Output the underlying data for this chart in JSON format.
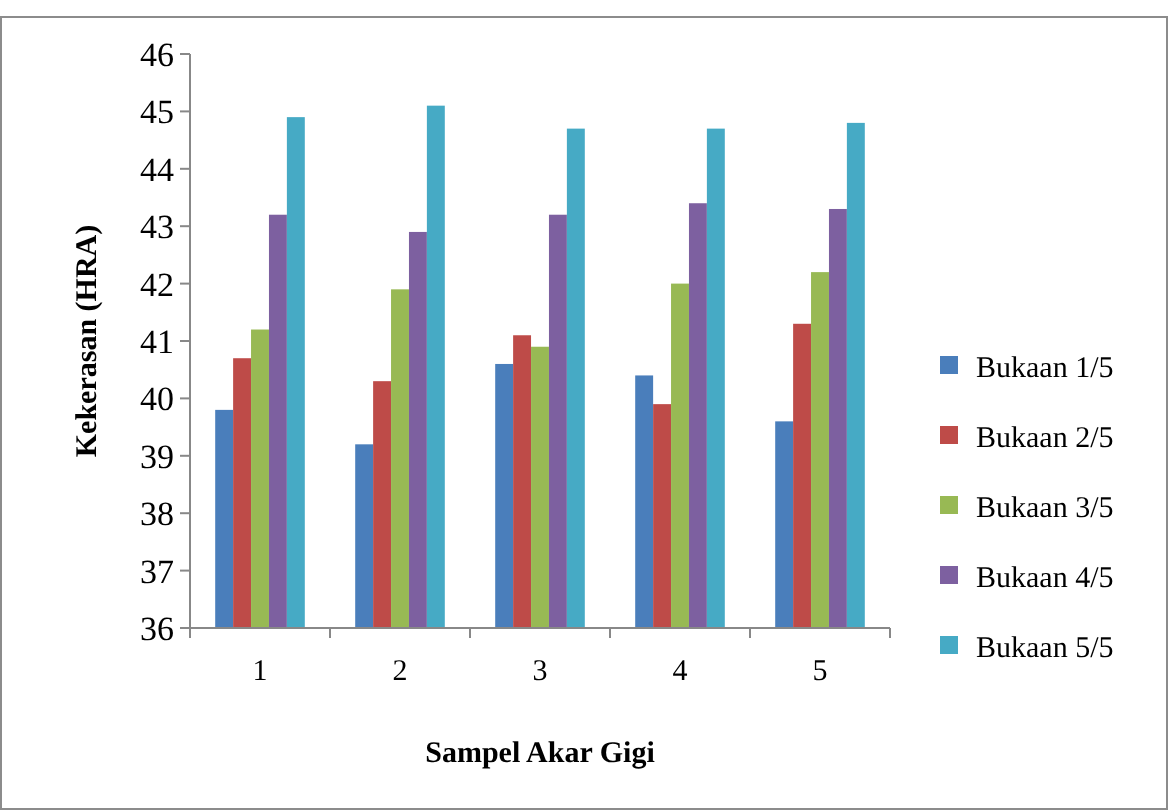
{
  "chart_data": {
    "type": "bar",
    "xlabel": "Sampel Akar Gigi",
    "ylabel": "Kekerasan (HRA)",
    "categories": [
      "1",
      "2",
      "3",
      "4",
      "5"
    ],
    "series": [
      {
        "name": "Bukaan 1/5",
        "color": "#4a7ebb",
        "values": [
          39.8,
          39.2,
          40.6,
          40.4,
          39.6
        ]
      },
      {
        "name": "Bukaan 2/5",
        "color": "#be4b48",
        "values": [
          40.7,
          40.3,
          41.1,
          39.9,
          41.3
        ]
      },
      {
        "name": "Bukaan 3/5",
        "color": "#98b954",
        "values": [
          41.2,
          41.9,
          40.9,
          42.0,
          42.2
        ]
      },
      {
        "name": "Bukaan 4/5",
        "color": "#7d60a0",
        "values": [
          43.2,
          42.9,
          43.2,
          43.4,
          43.3
        ]
      },
      {
        "name": "Bukaan 5/5",
        "color": "#46aac5",
        "values": [
          44.9,
          45.1,
          44.7,
          44.7,
          44.8
        ]
      }
    ],
    "ylim": [
      36,
      46
    ],
    "yticks": [
      36,
      37,
      38,
      39,
      40,
      41,
      42,
      43,
      44,
      45,
      46
    ],
    "grid": false,
    "legend": "right"
  }
}
